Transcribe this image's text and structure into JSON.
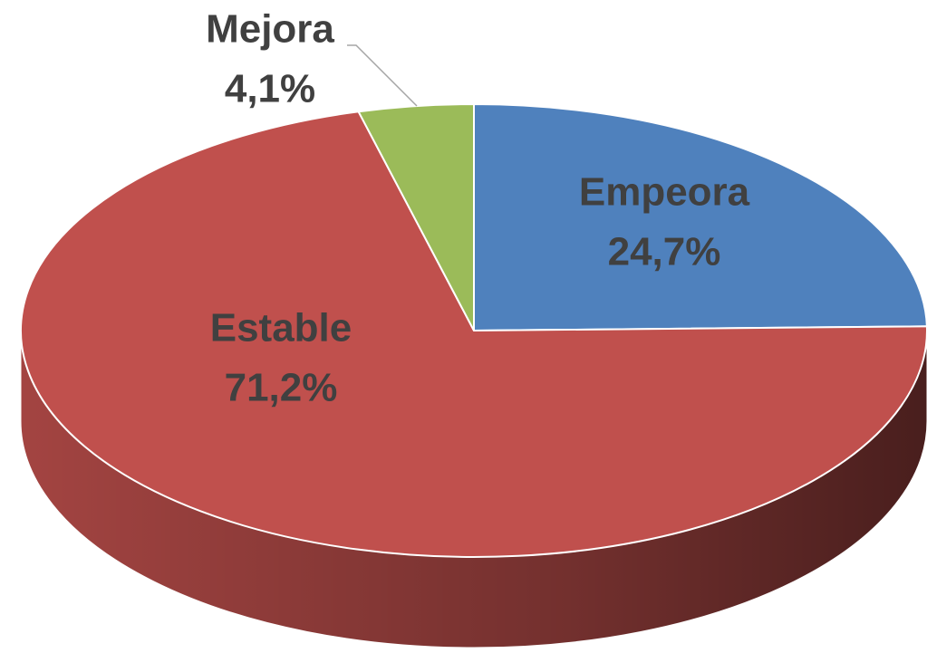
{
  "chart_data": {
    "type": "pie3d",
    "categories": [
      "Empeora",
      "Estable",
      "Mejora"
    ],
    "values": [
      24.7,
      71.2,
      4.1
    ],
    "value_labels": [
      "24,7%",
      "71,2%",
      "4,1%"
    ],
    "colors": [
      "#4f81bd",
      "#c0504d",
      "#9bbb59"
    ]
  }
}
